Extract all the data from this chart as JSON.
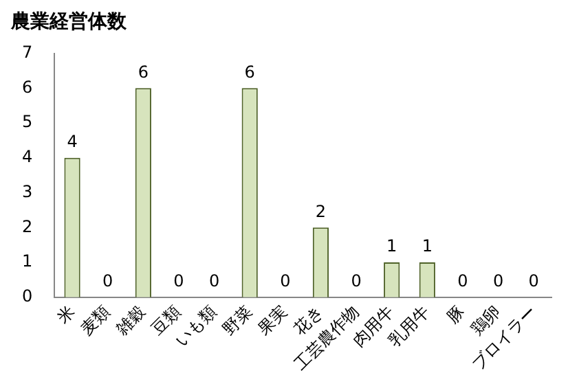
{
  "chart_data": {
    "type": "bar",
    "title": "農業経営体数",
    "categories": [
      "米",
      "麦類",
      "雑穀",
      "豆類",
      "いも類",
      "野菜",
      "果実",
      "花き",
      "工芸農作物",
      "肉用牛",
      "乳用牛",
      "豚",
      "鶏卵",
      "ブロイラー"
    ],
    "values": [
      4,
      0,
      6,
      0,
      0,
      6,
      0,
      2,
      0,
      1,
      1,
      0,
      0,
      0
    ],
    "color": "#d7e4bd",
    "ylim": [
      0,
      7
    ],
    "yticks": [
      0,
      1,
      2,
      3,
      4,
      5,
      6,
      7
    ],
    "grid": false,
    "legend": false,
    "data_labels": true
  }
}
